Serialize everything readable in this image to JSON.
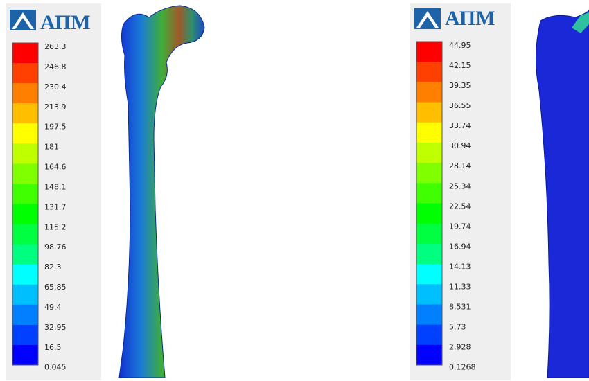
{
  "panels": [
    {
      "logo": "АПМ",
      "legend": [
        "263.3",
        "246.8",
        "230.4",
        "213.9",
        "197.5",
        "181",
        "164.6",
        "148.1",
        "131.7",
        "115.2",
        "98.76",
        "82.3",
        "65.85",
        "49.4",
        "32.95",
        "16.5",
        "0.045"
      ]
    },
    {
      "logo": "АПМ",
      "legend": [
        "44.95",
        "42.15",
        "39.35",
        "36.55",
        "33.74",
        "30.94",
        "28.14",
        "25.34",
        "22.54",
        "19.74",
        "16.94",
        "14.13",
        "11.33",
        "8.531",
        "5.73",
        "2.928",
        "0.1268"
      ]
    }
  ]
}
